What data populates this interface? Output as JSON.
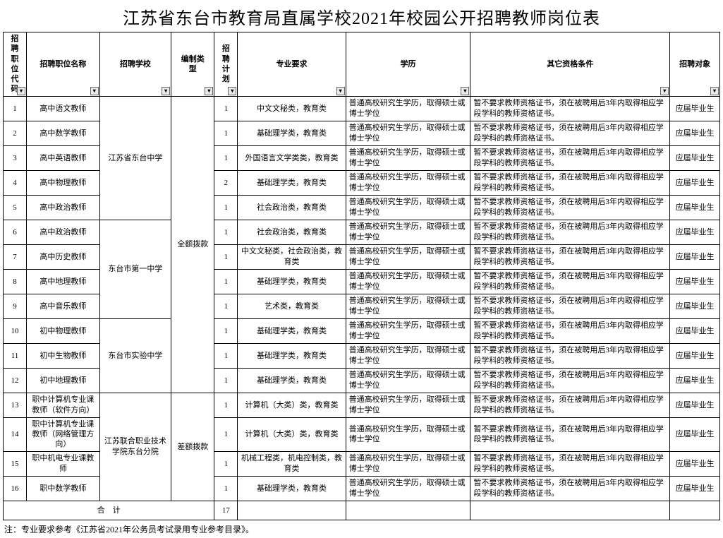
{
  "title": "江苏省东台市教育局直属学校2021年校园公开招聘教师岗位表",
  "headers": {
    "code": "招聘职位代码",
    "name": "招聘职位名称",
    "school": "招聘学校",
    "type": "编制类型",
    "plan": "招聘计划",
    "major": "专业要求",
    "edu": "学历",
    "qual": "其它资格条件",
    "target": "招聘对象"
  },
  "schools": {
    "s1": "江苏省东台中学",
    "s2": "东台市第一中学",
    "s3": "东台市实验中学",
    "s4": "江苏联合职业技术学院东台分院"
  },
  "edu_text": "普通高校研究生学历，取得硕士或博士学位",
  "qual_text": "暂不要求教师资格证书，须在被聘用后3年内取得相应学段学科的教师资格证书。",
  "target_text": "应届毕业生",
  "type_full": "全额拨款",
  "type_diff": "差额拨款",
  "rows": [
    {
      "code": "1",
      "name": "高中语文教师",
      "plan": "1",
      "major": "中文文秘类，教育类"
    },
    {
      "code": "2",
      "name": "高中数学教师",
      "plan": "1",
      "major": "基础理学类，教育类"
    },
    {
      "code": "3",
      "name": "高中英语教师",
      "plan": "1",
      "major": "外国语言文学类类，教育类"
    },
    {
      "code": "4",
      "name": "高中物理教师",
      "plan": "2",
      "major": "基础理学类，教育类"
    },
    {
      "code": "5",
      "name": "高中政治教师",
      "plan": "1",
      "major": "社会政治类，教育类"
    },
    {
      "code": "6",
      "name": "高中政治教师",
      "plan": "1",
      "major": "社会政治类，教育类"
    },
    {
      "code": "7",
      "name": "高中历史教师",
      "plan": "1",
      "major": "中文文秘类，社会政治类，教育类"
    },
    {
      "code": "8",
      "name": "高中地理教师",
      "plan": "1",
      "major": "基础理学类，教育类"
    },
    {
      "code": "9",
      "name": "高中音乐教师",
      "plan": "1",
      "major": "艺术类，教育类"
    },
    {
      "code": "10",
      "name": "初中物理教师",
      "plan": "1",
      "major": "基础理学类，教育类"
    },
    {
      "code": "11",
      "name": "初中生物教师",
      "plan": "1",
      "major": "基础理学类，教育类"
    },
    {
      "code": "12",
      "name": "初中地理教师",
      "plan": "1",
      "major": "基础理学类，教育类"
    },
    {
      "code": "13",
      "name": "职中计算机专业课教师（软件方向）",
      "plan": "1",
      "major": "计算机（大类）类，教育类"
    },
    {
      "code": "14",
      "name": "职中计算机专业课教师（网络管理方向）",
      "plan": "1",
      "major": "计算机（大类）类，教育类"
    },
    {
      "code": "15",
      "name": "职中机电专业课教师",
      "plan": "1",
      "major": "机械工程类，机电控制类，教育类"
    },
    {
      "code": "16",
      "name": "职中数学教师",
      "plan": "1",
      "major": "基础理学类，教育类"
    }
  ],
  "total_label": "合　计",
  "total_value": "17",
  "footnote": "注：专业要求参考《江苏省2021年公务员考试录用专业参考目录》。",
  "colors": {
    "border": "#000000",
    "bg": "#ffffff",
    "dropdown_bg": "#eaeaea",
    "dropdown_border": "#666666"
  }
}
